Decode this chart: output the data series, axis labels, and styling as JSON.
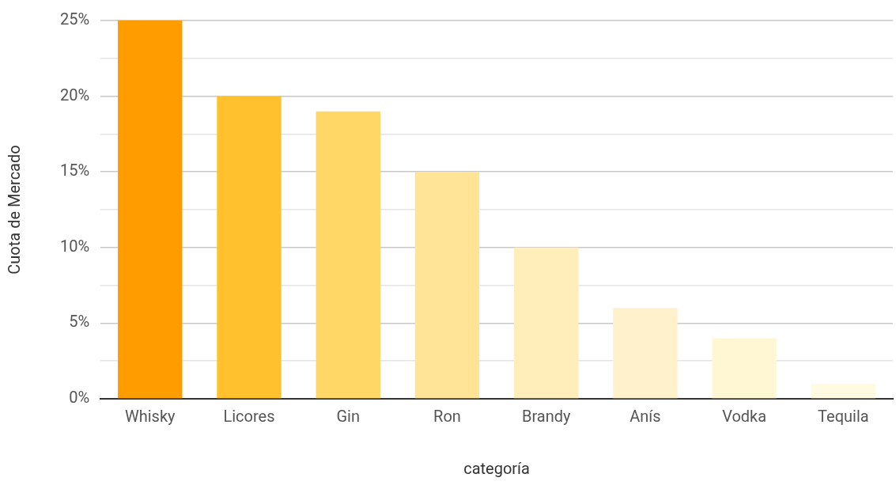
{
  "chart_data": {
    "type": "bar",
    "xlabel": "categoría",
    "ylabel": "Cuota de Mercado",
    "categories": [
      "Whisky",
      "Licores",
      "Gin",
      "Ron",
      "Brandy",
      "Anís",
      "Vodka",
      "Tequila"
    ],
    "values": [
      25,
      20,
      19,
      15,
      10,
      6,
      4,
      1
    ],
    "colors": [
      "#ff9c00",
      "#ffc22e",
      "#ffd766",
      "#ffe498",
      "#ffedba",
      "#fff1cc",
      "#fff7d3",
      "#fffbe0"
    ],
    "ylim": [
      0,
      25
    ],
    "yticks": [
      {
        "value": 0,
        "label": "0%"
      },
      {
        "value": 2.5,
        "label": null
      },
      {
        "value": 5,
        "label": "5%"
      },
      {
        "value": 7.5,
        "label": null
      },
      {
        "value": 10,
        "label": "10%"
      },
      {
        "value": 12.5,
        "label": null
      },
      {
        "value": 15,
        "label": "15%"
      },
      {
        "value": 17.5,
        "label": null
      },
      {
        "value": 20,
        "label": "20%"
      },
      {
        "value": 22.5,
        "label": null
      },
      {
        "value": 25,
        "label": "25%"
      }
    ],
    "grid": "y",
    "legend": false
  }
}
